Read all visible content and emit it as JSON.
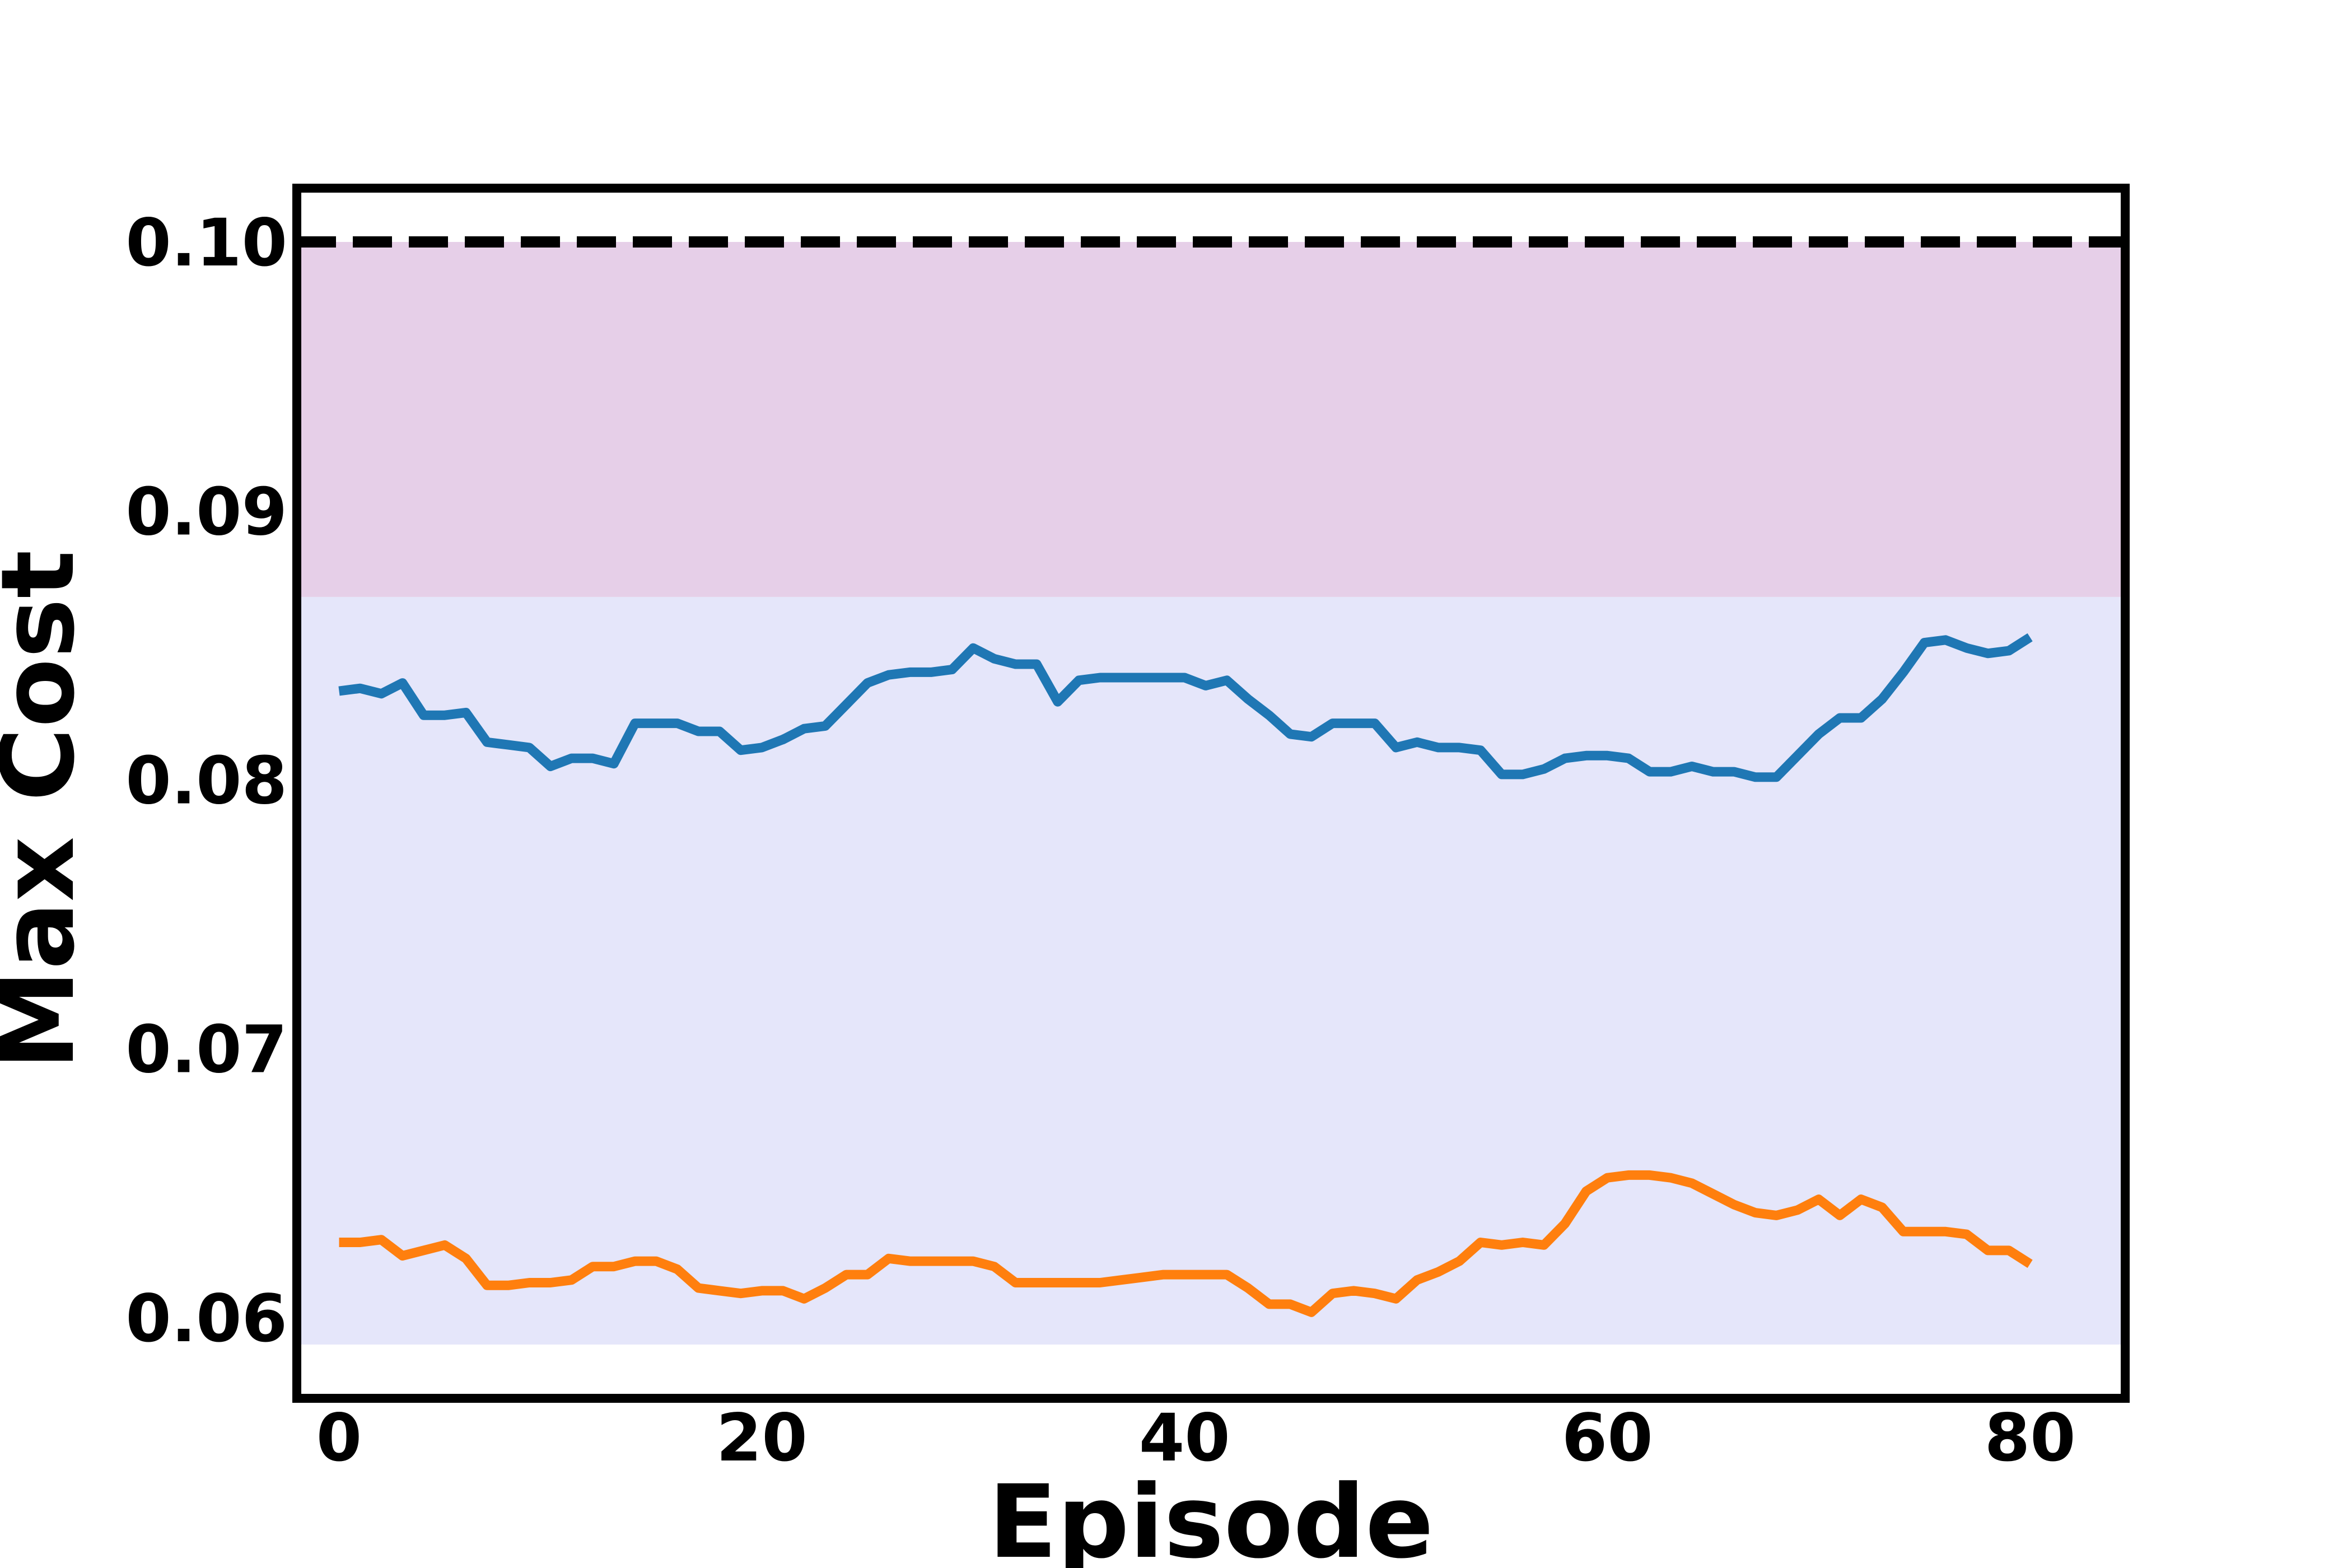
{
  "chart_data": {
    "type": "line",
    "title": "",
    "xlabel": "Episode",
    "ylabel": "Max Cost",
    "xlim": [
      -2,
      84.5
    ],
    "ylim": [
      0.057,
      0.102
    ],
    "xticks": [
      0,
      20,
      40,
      60,
      80
    ],
    "xtick_labels": [
      "0",
      "20",
      "40",
      "60",
      "80"
    ],
    "yticks": [
      0.06,
      0.07,
      0.08,
      0.09,
      0.1
    ],
    "ytick_labels": [
      "0.06",
      "0.07",
      "0.08",
      "0.09",
      "0.10"
    ],
    "grid": false,
    "legend": "none",
    "threshold": {
      "value": 0.1,
      "style": "dashed",
      "color": "#000000"
    },
    "bands": [
      {
        "y0": 0.059,
        "y1": 0.0868,
        "color": "#e5e6fa"
      },
      {
        "y0": 0.0868,
        "y1": 0.1,
        "color": "#e6cfe8"
      }
    ],
    "x": [
      0,
      1,
      2,
      3,
      4,
      5,
      6,
      7,
      8,
      9,
      10,
      11,
      12,
      13,
      14,
      15,
      16,
      17,
      18,
      19,
      20,
      21,
      22,
      23,
      24,
      25,
      26,
      27,
      28,
      29,
      30,
      31,
      32,
      33,
      34,
      35,
      36,
      37,
      38,
      39,
      40,
      41,
      42,
      43,
      44,
      45,
      46,
      47,
      48,
      49,
      50,
      51,
      52,
      53,
      54,
      55,
      56,
      57,
      58,
      59,
      60,
      61,
      62,
      63,
      64,
      65,
      66,
      67,
      68,
      69,
      70,
      71,
      72,
      73,
      74,
      75,
      76,
      77,
      78,
      79,
      80
    ],
    "series": [
      {
        "color": "#1f77b4",
        "values": [
          0.0833,
          0.0834,
          0.0832,
          0.0836,
          0.0824,
          0.0824,
          0.0825,
          0.0814,
          0.0813,
          0.0812,
          0.0805,
          0.0808,
          0.0808,
          0.0806,
          0.0821,
          0.0821,
          0.0821,
          0.0818,
          0.0818,
          0.0811,
          0.0812,
          0.0815,
          0.0819,
          0.082,
          0.0828,
          0.0836,
          0.0839,
          0.084,
          0.084,
          0.0841,
          0.0849,
          0.0845,
          0.0843,
          0.0843,
          0.0829,
          0.0837,
          0.0838,
          0.0838,
          0.0838,
          0.0838,
          0.0838,
          0.0835,
          0.0837,
          0.083,
          0.0824,
          0.0817,
          0.0816,
          0.0821,
          0.0821,
          0.0821,
          0.0812,
          0.0814,
          0.0812,
          0.0812,
          0.0811,
          0.0802,
          0.0802,
          0.0804,
          0.0808,
          0.0809,
          0.0809,
          0.0808,
          0.0803,
          0.0803,
          0.0805,
          0.0803,
          0.0803,
          0.0801,
          0.0801,
          0.0809,
          0.0817,
          0.0823,
          0.0823,
          0.083,
          0.084,
          0.0851,
          0.0852,
          0.0849,
          0.0847,
          0.0848,
          0.0853
        ]
      },
      {
        "color": "#ff7f0e",
        "values": [
          0.0628,
          0.0628,
          0.0629,
          0.0623,
          0.0625,
          0.0627,
          0.0622,
          0.0612,
          0.0612,
          0.0613,
          0.0613,
          0.0614,
          0.0619,
          0.0619,
          0.0621,
          0.0621,
          0.0618,
          0.0611,
          0.061,
          0.0609,
          0.061,
          0.061,
          0.0607,
          0.0611,
          0.0616,
          0.0616,
          0.0622,
          0.0621,
          0.0621,
          0.0621,
          0.0621,
          0.0619,
          0.0613,
          0.0613,
          0.0613,
          0.0613,
          0.0613,
          0.0614,
          0.0615,
          0.0616,
          0.0616,
          0.0616,
          0.0616,
          0.0611,
          0.0605,
          0.0605,
          0.0602,
          0.0609,
          0.061,
          0.0609,
          0.0607,
          0.0614,
          0.0617,
          0.0621,
          0.0628,
          0.0627,
          0.0628,
          0.0627,
          0.0635,
          0.0647,
          0.0652,
          0.0653,
          0.0653,
          0.0652,
          0.065,
          0.0646,
          0.0642,
          0.0639,
          0.0638,
          0.064,
          0.0644,
          0.0638,
          0.0644,
          0.0641,
          0.0632,
          0.0632,
          0.0632,
          0.0631,
          0.0625,
          0.0625,
          0.062
        ]
      }
    ]
  }
}
